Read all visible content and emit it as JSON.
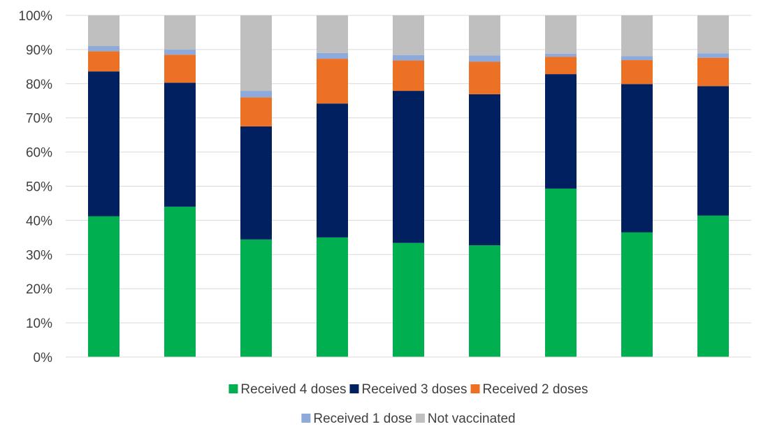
{
  "chart_data": {
    "type": "bar",
    "stacked": true,
    "percent_stacked": true,
    "title": "",
    "xlabel": "",
    "ylabel": "",
    "ylim": [
      0,
      100
    ],
    "y_ticks": [
      "0%",
      "10%",
      "20%",
      "30%",
      "40%",
      "50%",
      "60%",
      "70%",
      "80%",
      "90%",
      "100%"
    ],
    "categories": [
      "",
      "",
      "",
      "",
      "",
      "",
      "",
      "",
      ""
    ],
    "grid": true,
    "legend_position": "bottom",
    "series": [
      {
        "name": "Received 4 doses",
        "color": "#00b050",
        "values": [
          41.2,
          44.0,
          34.4,
          35.0,
          33.4,
          32.7,
          49.3,
          36.5,
          41.4
        ]
      },
      {
        "name": "Received 3 doses",
        "color": "#002060",
        "values": [
          42.4,
          36.3,
          33.1,
          39.2,
          44.5,
          44.2,
          33.5,
          43.4,
          37.9
        ]
      },
      {
        "name": "Received 2 doses",
        "color": "#ed7125",
        "values": [
          5.9,
          8.2,
          8.5,
          13.1,
          8.9,
          9.5,
          5.1,
          7.0,
          8.3
        ]
      },
      {
        "name": "Received 1 dose",
        "color": "#8eaadb",
        "values": [
          1.5,
          1.5,
          1.9,
          1.7,
          1.6,
          1.9,
          0.9,
          1.2,
          1.3
        ]
      },
      {
        "name": "Not vaccinated",
        "color": "#bfbfbf",
        "values": [
          9.0,
          10.0,
          22.1,
          11.0,
          11.6,
          11.7,
          11.2,
          11.9,
          11.1
        ]
      }
    ]
  }
}
